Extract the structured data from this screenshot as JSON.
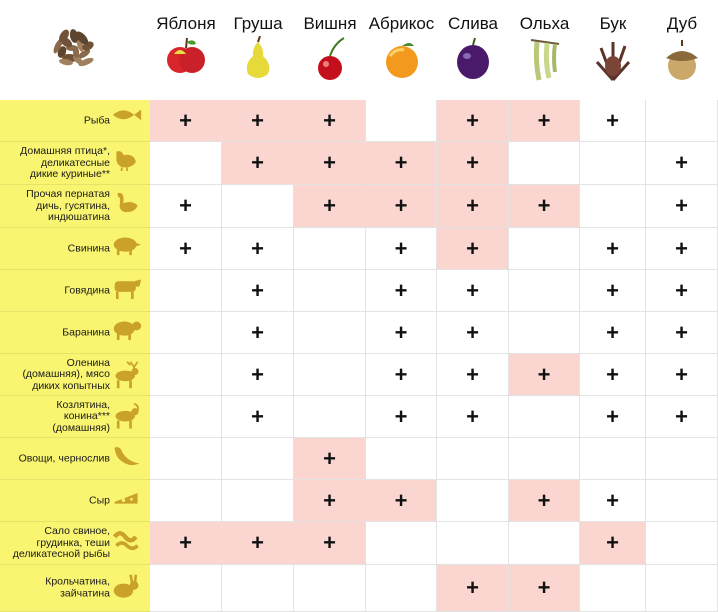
{
  "columns": [
    {
      "label": "Яблоня",
      "icon": "apple-icon"
    },
    {
      "label": "Груша",
      "icon": "pear-icon"
    },
    {
      "label": "Вишня",
      "icon": "cherry-icon"
    },
    {
      "label": "Абрикос",
      "icon": "apricot-icon"
    },
    {
      "label": "Слива",
      "icon": "plum-icon"
    },
    {
      "label": "Ольха",
      "icon": "alder-catkin-icon"
    },
    {
      "label": "Бук",
      "icon": "beech-nut-icon"
    },
    {
      "label": "Дуб",
      "icon": "acorn-icon"
    }
  ],
  "corner_icon": "wood-chips-icon",
  "mark": "+",
  "colors": {
    "label_bg": "#f9f571",
    "highlight": "#fbd6d0",
    "icon": "#c9a227"
  },
  "rows": [
    {
      "label": "Рыба",
      "icon": "fish-icon",
      "cells": [
        [
          "+",
          1
        ],
        [
          "+",
          1
        ],
        [
          "+",
          1
        ],
        [
          "",
          0
        ],
        [
          "+",
          1
        ],
        [
          "+",
          1
        ],
        [
          "+",
          0
        ],
        [
          "",
          0
        ]
      ]
    },
    {
      "label": "Домашняя птица*,\nделикатесные\nдикие куриные**",
      "icon": "chicken-icon",
      "cells": [
        [
          "",
          0
        ],
        [
          "+",
          1
        ],
        [
          "+",
          1
        ],
        [
          "+",
          1
        ],
        [
          "+",
          1
        ],
        [
          "",
          0
        ],
        [
          "",
          0
        ],
        [
          "+",
          0
        ]
      ]
    },
    {
      "label": "Прочая пернатая\nдичь, гусятина,\nиндюшатина",
      "icon": "goose-icon",
      "cells": [
        [
          "+",
          0
        ],
        [
          "",
          0
        ],
        [
          "+",
          1
        ],
        [
          "+",
          1
        ],
        [
          "+",
          1
        ],
        [
          "+",
          1
        ],
        [
          "",
          0
        ],
        [
          "+",
          0
        ]
      ]
    },
    {
      "label": "Свинина",
      "icon": "pig-icon",
      "cells": [
        [
          "+",
          0
        ],
        [
          "+",
          0
        ],
        [
          "",
          0
        ],
        [
          "+",
          0
        ],
        [
          "+",
          1
        ],
        [
          "",
          0
        ],
        [
          "+",
          0
        ],
        [
          "+",
          0
        ]
      ]
    },
    {
      "label": "Говядина",
      "icon": "cow-icon",
      "cells": [
        [
          "",
          0
        ],
        [
          "+",
          0
        ],
        [
          "",
          0
        ],
        [
          "+",
          0
        ],
        [
          "+",
          0
        ],
        [
          "",
          0
        ],
        [
          "+",
          0
        ],
        [
          "+",
          0
        ]
      ]
    },
    {
      "label": "Баранина",
      "icon": "sheep-icon",
      "cells": [
        [
          "",
          0
        ],
        [
          "+",
          0
        ],
        [
          "",
          0
        ],
        [
          "+",
          0
        ],
        [
          "+",
          0
        ],
        [
          "",
          0
        ],
        [
          "+",
          0
        ],
        [
          "+",
          0
        ]
      ]
    },
    {
      "label": "Оленина\n(домашняя), мясо\nдиких копытных",
      "icon": "deer-icon",
      "cells": [
        [
          "",
          0
        ],
        [
          "+",
          0
        ],
        [
          "",
          0
        ],
        [
          "+",
          0
        ],
        [
          "+",
          0
        ],
        [
          "+",
          1
        ],
        [
          "+",
          0
        ],
        [
          "+",
          0
        ]
      ]
    },
    {
      "label": "Козлятина,\nконина***\n(домашняя)",
      "icon": "goat-icon",
      "cells": [
        [
          "",
          0
        ],
        [
          "+",
          0
        ],
        [
          "",
          0
        ],
        [
          "+",
          0
        ],
        [
          "+",
          0
        ],
        [
          "",
          0
        ],
        [
          "+",
          0
        ],
        [
          "+",
          0
        ]
      ]
    },
    {
      "label": "Овощи, чернослив",
      "icon": "pepper-icon",
      "cells": [
        [
          "",
          0
        ],
        [
          "",
          0
        ],
        [
          "+",
          1
        ],
        [
          "",
          0
        ],
        [
          "",
          0
        ],
        [
          "",
          0
        ],
        [
          "",
          0
        ],
        [
          "",
          0
        ]
      ]
    },
    {
      "label": "Сыр",
      "icon": "cheese-icon",
      "cells": [
        [
          "",
          0
        ],
        [
          "",
          0
        ],
        [
          "+",
          1
        ],
        [
          "+",
          1
        ],
        [
          "",
          0
        ],
        [
          "+",
          1
        ],
        [
          "+",
          0
        ],
        [
          "",
          0
        ]
      ]
    },
    {
      "label": "Сало свиное,\nгрудинка, теши\nделикатесной рыбы",
      "icon": "bacon-icon",
      "cells": [
        [
          "+",
          1
        ],
        [
          "+",
          1
        ],
        [
          "+",
          1
        ],
        [
          "",
          0
        ],
        [
          "",
          0
        ],
        [
          "",
          0
        ],
        [
          "+",
          1
        ],
        [
          "",
          0
        ]
      ]
    },
    {
      "label": "Крольчатина,\nзайчатина",
      "icon": "rabbit-icon",
      "cells": [
        [
          "",
          0
        ],
        [
          "",
          0
        ],
        [
          "",
          0
        ],
        [
          "",
          0
        ],
        [
          "+",
          1
        ],
        [
          "+",
          1
        ],
        [
          "",
          0
        ],
        [
          "",
          0
        ]
      ]
    }
  ]
}
